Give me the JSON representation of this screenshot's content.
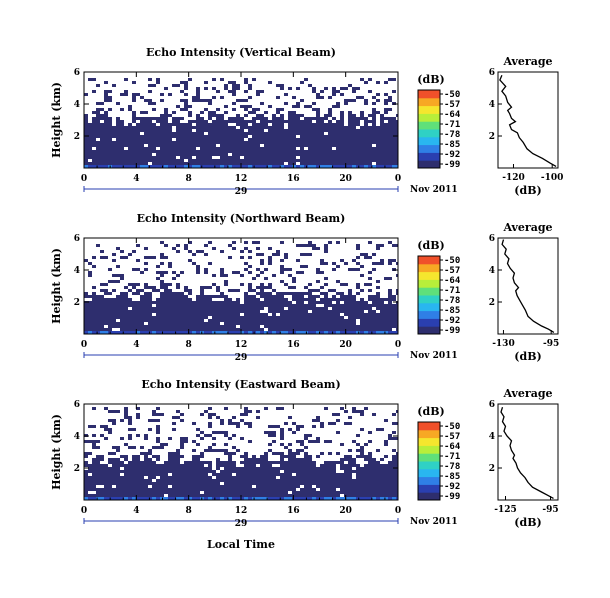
{
  "figure": {
    "bottom_xlabel": "Local Time",
    "date_label": "Nov 2011",
    "day_label": "29"
  },
  "colormap": [
    "#2e2e6e",
    "#2a3fb0",
    "#2f7fe6",
    "#29b6f0",
    "#2fd1c5",
    "#5fe07a",
    "#b8ee3a",
    "#f5e62e",
    "#f7a824",
    "#f0502a"
  ],
  "chart_data": [
    {
      "type": "heatmap",
      "title": "Echo Intensity (Vertical Beam)",
      "xlabel": "",
      "ylabel": "Height (km)",
      "x_ticks": [
        "0",
        "4",
        "8",
        "12",
        "16",
        "20",
        "0"
      ],
      "xlim": [
        0,
        24
      ],
      "y_ticks": [
        "2",
        "4",
        "6"
      ],
      "ylim": [
        0,
        6
      ],
      "colorbar": {
        "unit": "(dB)",
        "ticks": [
          "-50",
          "-57",
          "-64",
          "-71",
          "-78",
          "-85",
          "-92",
          "-99"
        ]
      },
      "fill": {
        "solid_top_km": 3.1,
        "sparse_top_km": 5.8,
        "sparse_density": 0.22,
        "surface_km": 0.35
      },
      "profile": {
        "title": "Average",
        "xlabel": "(dB)",
        "x_ticks": [
          "-120",
          "-100"
        ],
        "xlim": [
          -128,
          -97
        ],
        "y_ticks": [
          "2",
          "4",
          "6"
        ],
        "ylim": [
          0,
          6
        ],
        "points": [
          [
            -98,
            0.1
          ],
          [
            -101,
            0.3
          ],
          [
            -105,
            0.6
          ],
          [
            -110,
            0.9
          ],
          [
            -113,
            1.2
          ],
          [
            -115,
            1.6
          ],
          [
            -117,
            1.9
          ],
          [
            -118,
            2.2
          ],
          [
            -121,
            2.4
          ],
          [
            -122,
            2.7
          ],
          [
            -119,
            2.9
          ],
          [
            -121,
            3.1
          ],
          [
            -122,
            3.4
          ],
          [
            -123,
            3.6
          ],
          [
            -121,
            3.8
          ],
          [
            -123,
            4.1
          ],
          [
            -124,
            4.5
          ],
          [
            -126,
            4.8
          ],
          [
            -124,
            5.1
          ],
          [
            -127,
            5.5
          ],
          [
            -126,
            5.8
          ]
        ]
      }
    },
    {
      "type": "heatmap",
      "title": "Echo Intensity (Northward Beam)",
      "xlabel": "",
      "ylabel": "Height (km)",
      "x_ticks": [
        "0",
        "4",
        "8",
        "12",
        "16",
        "20",
        "0"
      ],
      "xlim": [
        0,
        24
      ],
      "y_ticks": [
        "2",
        "4",
        "6"
      ],
      "ylim": [
        0,
        6
      ],
      "colorbar": {
        "unit": "(dB)",
        "ticks": [
          "-50",
          "-57",
          "-64",
          "-71",
          "-78",
          "-85",
          "-92",
          "-99"
        ]
      },
      "fill": {
        "solid_top_km": 2.3,
        "sparse_top_km": 5.9,
        "sparse_density": 0.2,
        "surface_km": 0.35
      },
      "profile": {
        "title": "Average",
        "xlabel": "(dB)",
        "x_ticks": [
          "-130",
          "-95"
        ],
        "xlim": [
          -134,
          -90
        ],
        "y_ticks": [
          "2",
          "4",
          "6"
        ],
        "ylim": [
          0,
          6
        ],
        "points": [
          [
            -93,
            0.1
          ],
          [
            -97,
            0.3
          ],
          [
            -102,
            0.5
          ],
          [
            -108,
            0.8
          ],
          [
            -112,
            1.1
          ],
          [
            -114,
            1.5
          ],
          [
            -116,
            1.8
          ],
          [
            -118,
            2.1
          ],
          [
            -120,
            2.4
          ],
          [
            -121,
            2.7
          ],
          [
            -119,
            2.9
          ],
          [
            -122,
            3.2
          ],
          [
            -123,
            3.5
          ],
          [
            -122,
            3.8
          ],
          [
            -125,
            4.1
          ],
          [
            -127,
            4.4
          ],
          [
            -126,
            4.7
          ],
          [
            -129,
            5.0
          ],
          [
            -128,
            5.3
          ],
          [
            -131,
            5.6
          ],
          [
            -130,
            5.9
          ]
        ]
      }
    },
    {
      "type": "heatmap",
      "title": "Echo Intensity (Eastward Beam)",
      "xlabel": "",
      "ylabel": "Height (km)",
      "x_ticks": [
        "0",
        "4",
        "8",
        "12",
        "16",
        "20",
        "0"
      ],
      "xlim": [
        0,
        24
      ],
      "y_ticks": [
        "2",
        "4",
        "6"
      ],
      "ylim": [
        0,
        6
      ],
      "colorbar": {
        "unit": "(dB)",
        "ticks": [
          "-50",
          "-57",
          "-64",
          "-71",
          "-78",
          "-85",
          "-92",
          "-99"
        ]
      },
      "fill": {
        "solid_top_km": 2.4,
        "sparse_top_km": 5.9,
        "sparse_density": 0.2,
        "surface_km": 0.35
      },
      "profile": {
        "title": "Average",
        "xlabel": "(dB)",
        "x_ticks": [
          "-125",
          "-95"
        ],
        "xlim": [
          -130,
          -90
        ],
        "y_ticks": [
          "2",
          "4",
          "6"
        ],
        "ylim": [
          0,
          6
        ],
        "points": [
          [
            -93,
            0.1
          ],
          [
            -97,
            0.3
          ],
          [
            -101,
            0.5
          ],
          [
            -107,
            0.8
          ],
          [
            -110,
            1.1
          ],
          [
            -112,
            1.4
          ],
          [
            -115,
            1.7
          ],
          [
            -117,
            2.0
          ],
          [
            -118,
            2.3
          ],
          [
            -120,
            2.6
          ],
          [
            -119,
            2.8
          ],
          [
            -121,
            3.1
          ],
          [
            -122,
            3.4
          ],
          [
            -121,
            3.7
          ],
          [
            -124,
            4.0
          ],
          [
            -126,
            4.3
          ],
          [
            -125,
            4.6
          ],
          [
            -127,
            4.9
          ],
          [
            -126,
            5.2
          ],
          [
            -128,
            5.5
          ],
          [
            -127,
            5.8
          ]
        ]
      }
    }
  ]
}
